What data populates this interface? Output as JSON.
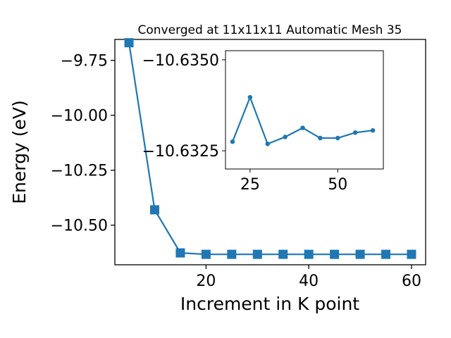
{
  "chart_data": [
    {
      "type": "line",
      "title": "Converged at 11x11x11 Automatic Mesh 35",
      "xlabel": "Increment in K point",
      "ylabel": "Energy (eV)",
      "x": [
        5,
        10,
        15,
        20,
        25,
        30,
        35,
        40,
        45,
        50,
        55,
        60
      ],
      "series": [
        {
          "values": [
            -9.67,
            -10.43,
            -10.626,
            -10.6325,
            -10.6325,
            -10.6325,
            -10.6325,
            -10.6325,
            -10.6325,
            -10.6325,
            -10.6325,
            -10.6325
          ],
          "marker": "square",
          "color": "#1f77b4"
        }
      ],
      "xticks": [
        "20",
        "40",
        "60"
      ],
      "yticks": [
        "−9.75",
        "−10.00",
        "−10.25",
        "−10.50"
      ],
      "xlim": [
        2.25,
        62.75
      ],
      "ylim": [
        -10.68,
        -9.655
      ],
      "grid": false
    },
    {
      "type": "line",
      "title": "",
      "xlabel": "",
      "ylabel": "",
      "x": [
        20,
        25,
        30,
        35,
        40,
        45,
        50,
        55,
        60
      ],
      "series": [
        {
          "values": [
            -10.63275,
            -10.63397,
            -10.63269,
            -10.63288,
            -10.63313,
            -10.63285,
            -10.63285,
            -10.633,
            -10.63306
          ],
          "marker": "circle",
          "color": "#1f77b4"
        }
      ],
      "xticks": [
        "25",
        "50"
      ],
      "yticks": [
        "−10.6350",
        "−10.6325"
      ],
      "xlim": [
        18,
        63
      ],
      "ylim": [
        -10.632,
        -10.63525
      ],
      "grid": false
    }
  ]
}
